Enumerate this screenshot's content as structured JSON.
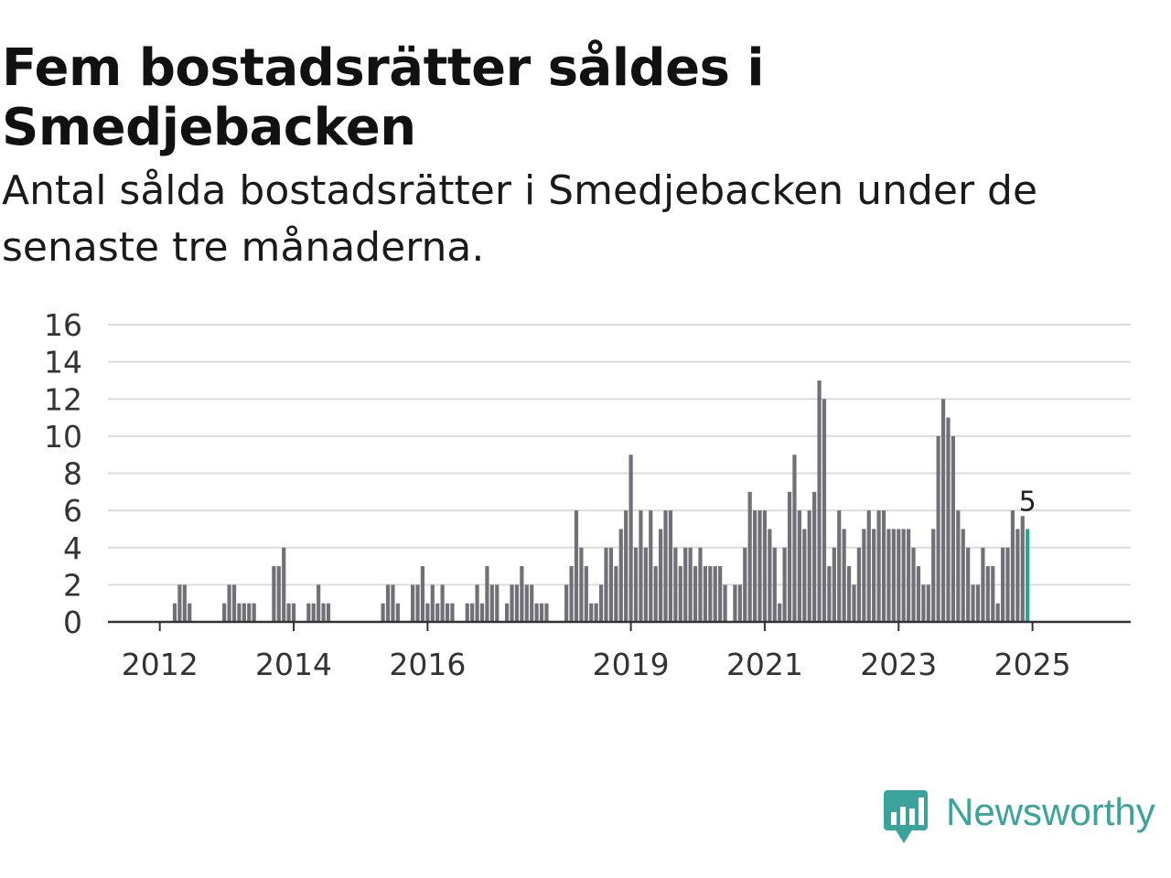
{
  "title": "Fem bostadsrätter såldes i Smedjebacken",
  "subtitle": "Antal sålda bostadsrätter i Smedjebacken under de senaste tre månaderna.",
  "brand": {
    "name": "Newsworthy",
    "color": "#3aa39b"
  },
  "colors": {
    "bar": "#707076",
    "highlight": "#2aa198",
    "grid": "#dcdcdc",
    "axis": "#333333"
  },
  "chart_data": {
    "type": "bar",
    "title": "Fem bostadsrätter såldes i Smedjebacken",
    "xlabel": "",
    "ylabel": "",
    "ylim": [
      0,
      16
    ],
    "yticks": [
      0,
      2,
      4,
      6,
      8,
      10,
      12,
      14,
      16
    ],
    "grid": true,
    "xlim_months": [
      0,
      174
    ],
    "xticks": [
      {
        "label": "2012",
        "month": 10
      },
      {
        "label": "2014",
        "month": 37
      },
      {
        "label": "2016",
        "month": 64
      },
      {
        "label": "2019",
        "month": 105
      },
      {
        "label": "2021",
        "month": 132
      },
      {
        "label": "2023",
        "month": 159
      },
      {
        "label": "2025",
        "month": 186
      }
    ],
    "start": "2011-01",
    "series": [
      {
        "name": "Antal sålda bostadsrätter",
        "values": [
          0,
          0,
          0,
          0,
          0,
          0,
          0,
          0,
          0,
          0,
          0,
          0,
          0,
          1,
          2,
          2,
          1,
          0,
          0,
          0,
          0,
          0,
          0,
          1,
          2,
          2,
          1,
          1,
          1,
          1,
          0,
          0,
          0,
          3,
          3,
          4,
          1,
          1,
          0,
          0,
          1,
          1,
          2,
          1,
          1,
          0,
          0,
          0,
          0,
          0,
          0,
          0,
          0,
          0,
          0,
          1,
          2,
          2,
          1,
          0,
          0,
          2,
          2,
          3,
          1,
          2,
          1,
          2,
          1,
          1,
          0,
          0,
          1,
          1,
          2,
          1,
          3,
          2,
          2,
          0,
          1,
          2,
          2,
          3,
          2,
          2,
          1,
          1,
          1,
          0,
          0,
          0,
          2,
          3,
          6,
          4,
          3,
          1,
          1,
          2,
          4,
          4,
          3,
          5,
          6,
          9,
          4,
          6,
          4,
          6,
          3,
          5,
          6,
          6,
          4,
          3,
          4,
          4,
          3,
          4,
          3,
          3,
          3,
          3,
          2,
          0,
          2,
          2,
          4,
          7,
          6,
          6,
          6,
          5,
          4,
          1,
          4,
          7,
          9,
          6,
          5,
          6,
          7,
          13,
          12,
          3,
          4,
          6,
          5,
          3,
          2,
          4,
          5,
          6,
          5,
          6,
          6,
          5,
          5,
          5,
          5,
          5,
          4,
          3,
          2,
          2,
          5,
          10,
          12,
          11,
          10,
          6,
          5,
          4,
          2,
          2,
          4,
          3,
          3,
          1,
          4,
          4,
          6,
          5,
          5.7,
          5
        ]
      }
    ],
    "annotations": [
      {
        "label": "5",
        "target": "last-bar"
      }
    ]
  }
}
